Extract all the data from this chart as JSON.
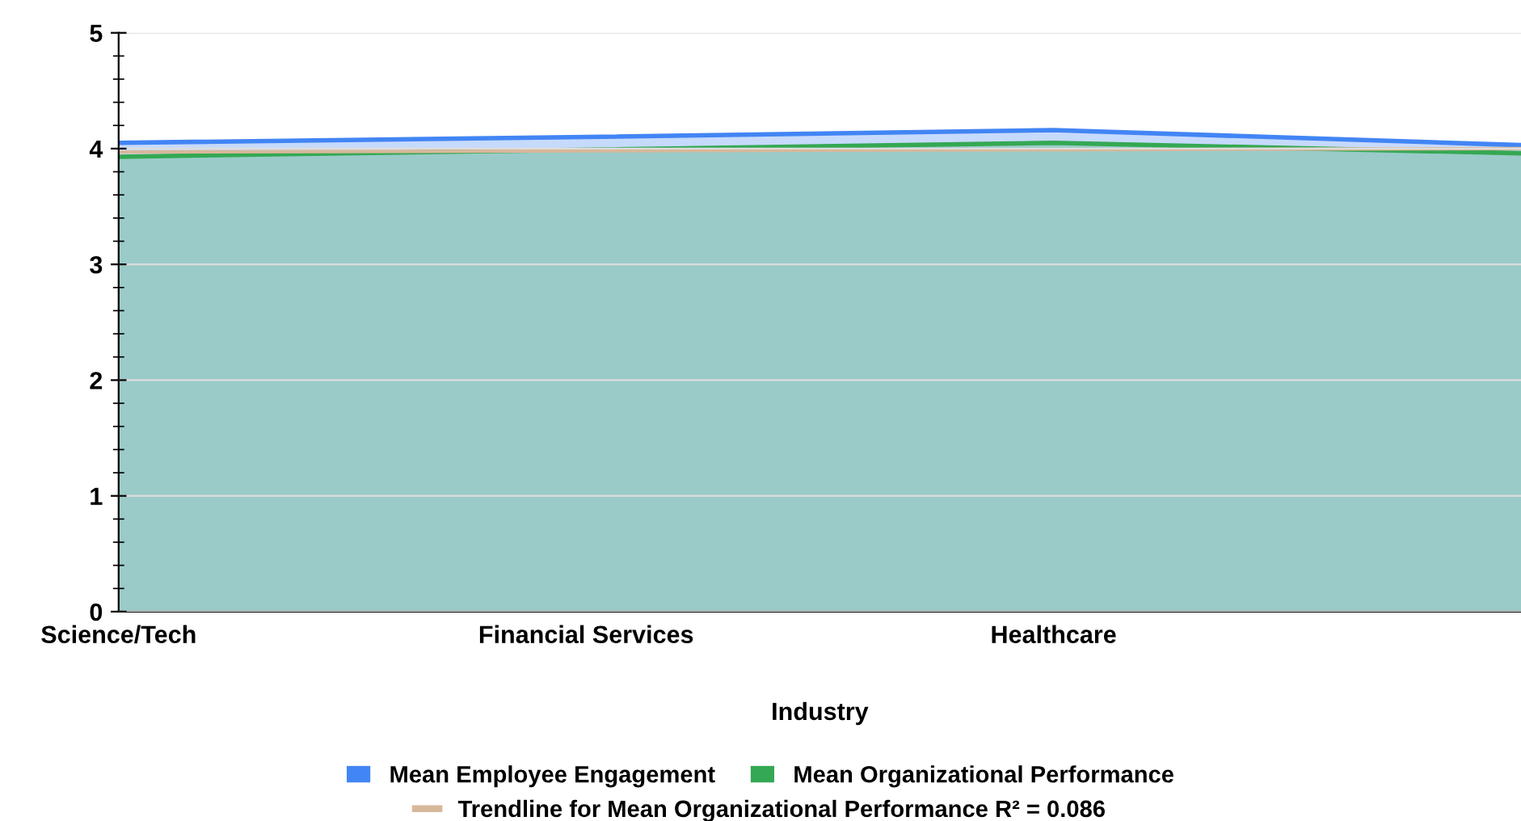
{
  "chart_data": {
    "type": "area",
    "xlabel": "Industry",
    "categories": [
      "Science/Tech",
      "Financial Services",
      "Healthcare",
      null
    ],
    "series": [
      {
        "name": "Mean Employee Engagement",
        "color": "#4285f4",
        "values": [
          4.05,
          4.1,
          4.16,
          4.03
        ]
      },
      {
        "name": "Mean Organizational Performance",
        "color": "#34a853",
        "values": [
          3.93,
          3.99,
          4.05,
          3.96
        ]
      },
      {
        "name": "Trendline for Mean Organizational Performance R² = 0.086",
        "type": "line",
        "color": "#d8b89a",
        "values": [
          3.97,
          3.98,
          3.99,
          4.0
        ]
      }
    ],
    "ylim": [
      0,
      5
    ],
    "yticks": [
      0,
      1,
      2,
      3,
      4,
      5
    ],
    "grid": "y",
    "legend": "bottom"
  }
}
